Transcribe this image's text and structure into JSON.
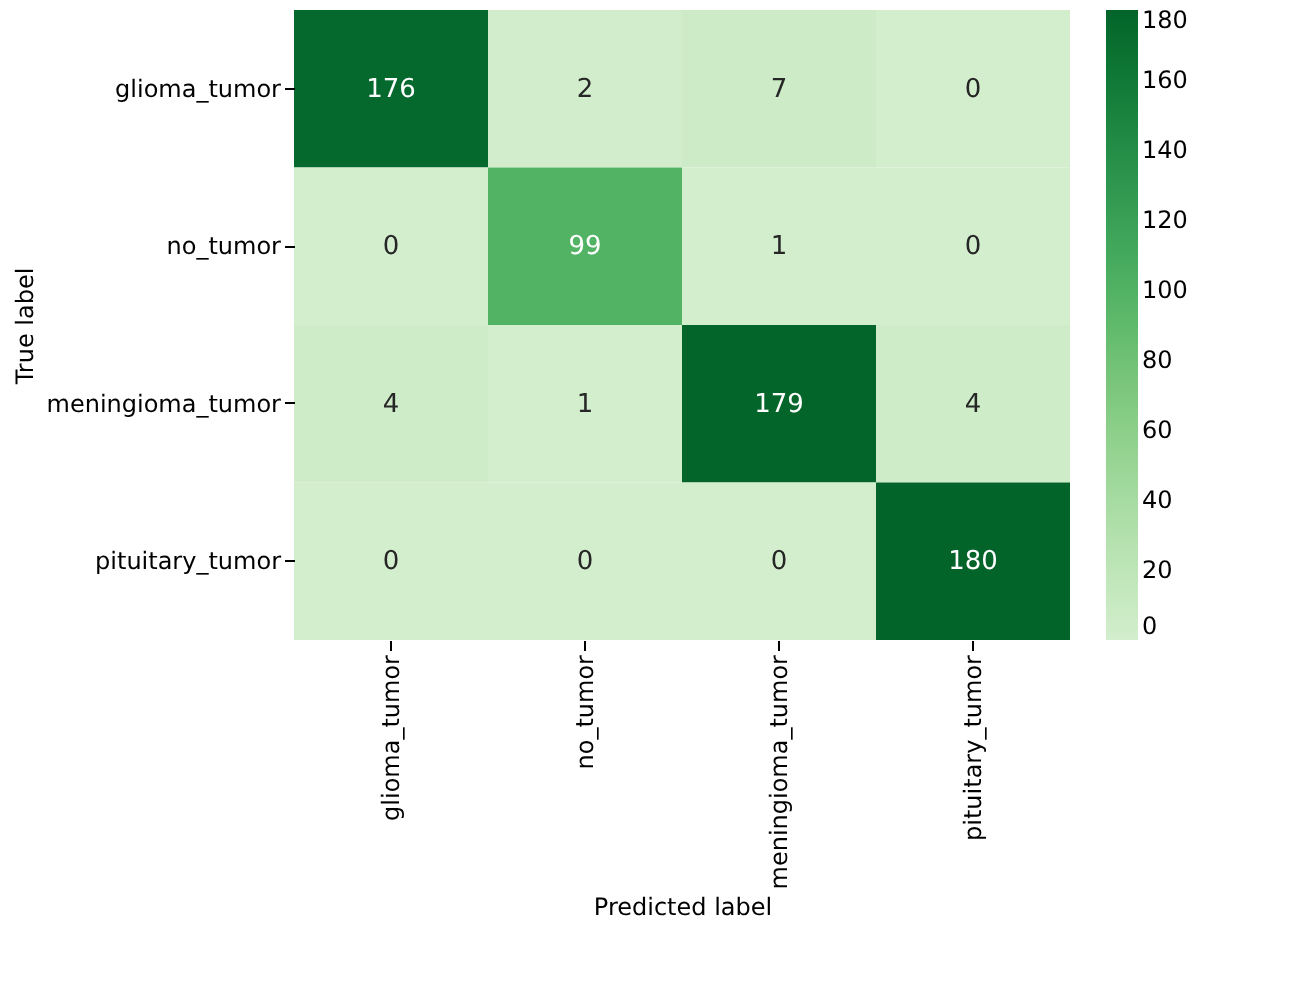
{
  "chart_data": {
    "type": "heatmap",
    "xlabel": "Predicted label",
    "ylabel": "True label",
    "categories": [
      "glioma_tumor",
      "no_tumor",
      "meningioma_tumor",
      "pituitary_tumor"
    ],
    "y_categories": [
      "glioma_tumor",
      "no_tumor",
      "meningioma_tumor",
      "pituitary_tumor"
    ],
    "cells": [
      [
        176,
        2,
        7,
        0
      ],
      [
        0,
        99,
        1,
        0
      ],
      [
        4,
        1,
        179,
        4
      ],
      [
        0,
        0,
        0,
        180
      ]
    ],
    "clim": [
      0,
      180
    ],
    "cticks": [
      0,
      20,
      40,
      60,
      80,
      100,
      120,
      140,
      160,
      180
    ],
    "data_labels": true
  }
}
